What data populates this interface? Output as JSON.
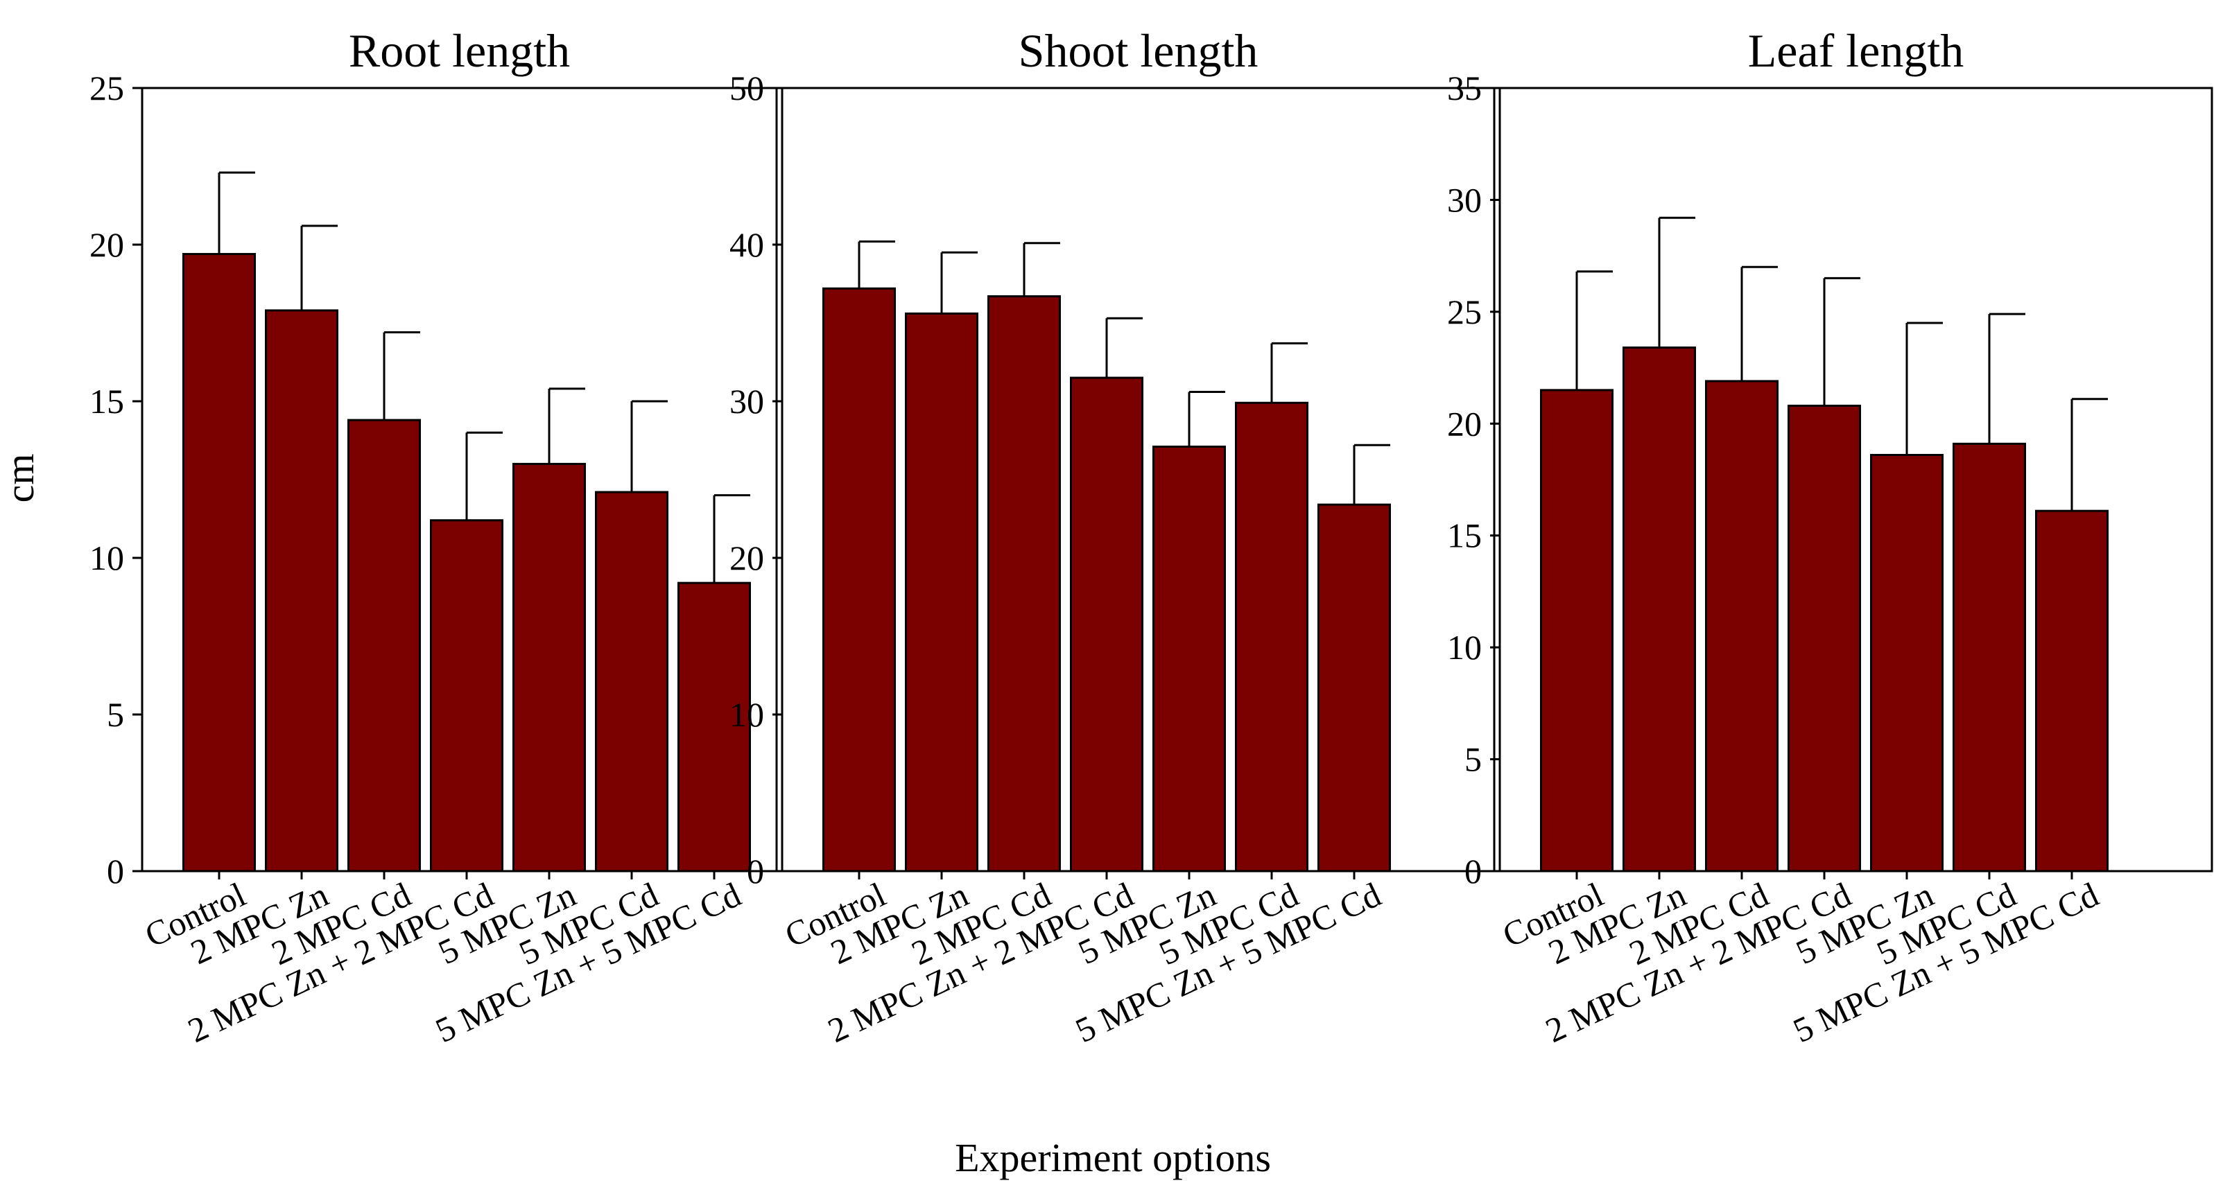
{
  "figure": {
    "ylabel": "cm",
    "xlabel": "Experiment options",
    "bar_color": "#7b0000",
    "edge_color": "#000000"
  },
  "chart_data": [
    {
      "type": "bar",
      "title": "Root length",
      "ylabel": "cm",
      "xlabel": "Experiment options",
      "ylim": [
        0,
        25
      ],
      "yticks": [
        0,
        5,
        10,
        15,
        20,
        25
      ],
      "categories": [
        "Control",
        "2 MPC Zn",
        "2 MPC Cd",
        "2 MPC Zn + 2 MPC Cd",
        "5 MPC Zn",
        "5 MPC Cd",
        "5 MPC Zn + 5 MPC Cd"
      ],
      "values": [
        19.7,
        17.9,
        14.4,
        11.2,
        13.0,
        12.1,
        9.2
      ],
      "errors": [
        2.6,
        2.7,
        2.8,
        2.8,
        2.4,
        2.9,
        2.8
      ]
    },
    {
      "type": "bar",
      "title": "Shoot length",
      "ylabel": "cm",
      "xlabel": "Experiment options",
      "ylim": [
        0,
        50
      ],
      "yticks": [
        0,
        10,
        20,
        30,
        40,
        50
      ],
      "categories": [
        "Control",
        "2 MPC Zn",
        "2 MPC Cd",
        "2 MPC Zn + 2 MPC Cd",
        "5 MPC Zn",
        "5 MPC Cd",
        "5 MPC Zn + 5 MPC Cd"
      ],
      "values": [
        37.2,
        35.6,
        36.7,
        31.5,
        27.1,
        29.9,
        23.4
      ],
      "errors": [
        3.0,
        3.9,
        3.4,
        3.8,
        3.5,
        3.8,
        3.8
      ]
    },
    {
      "type": "bar",
      "title": "Leaf length",
      "ylabel": "cm",
      "xlabel": "Experiment options",
      "ylim": [
        0,
        35
      ],
      "yticks": [
        0,
        5,
        10,
        15,
        20,
        25,
        30,
        35
      ],
      "categories": [
        "Control",
        "2 MPC Zn",
        "2 MPC Cd",
        "2 MPC Zn + 2 MPC Cd",
        "5 MPC Zn",
        "5 MPC Cd",
        "5 MPC Zn + 5 MPC Cd"
      ],
      "values": [
        21.5,
        23.4,
        21.9,
        20.8,
        18.6,
        19.1,
        16.1
      ],
      "errors": [
        5.3,
        5.8,
        5.1,
        5.7,
        5.9,
        5.8,
        5.0
      ]
    }
  ]
}
